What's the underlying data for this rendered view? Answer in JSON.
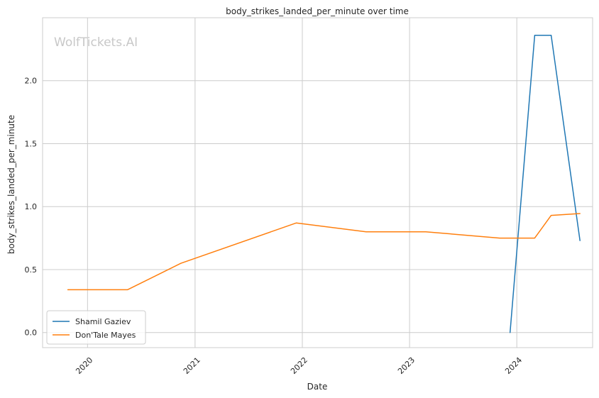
{
  "chart_data": {
    "type": "line",
    "title": "body_strikes_landed_per_minute over time",
    "xlabel": "Date",
    "ylabel": "body_strikes_landed_per_minute",
    "watermark": "WolfTickets.AI",
    "x_ticks": [
      "2020",
      "2021",
      "2022",
      "2023",
      "2024"
    ],
    "y_ticks": [
      "0.0",
      "0.5",
      "1.0",
      "1.5",
      "2.0"
    ],
    "xlim": [
      "2019-08-01",
      "2024-09-15"
    ],
    "ylim": [
      -0.12,
      2.5
    ],
    "grid": true,
    "legend_position": "lower-left",
    "series": [
      {
        "name": "Shamil Gaziev",
        "color": "#1f77b4",
        "points": [
          {
            "x": "2023-12-09",
            "y": 0.0
          },
          {
            "x": "2024-03-02",
            "y": 2.36
          },
          {
            "x": "2024-04-27",
            "y": 2.36
          },
          {
            "x": "2024-08-03",
            "y": 0.73
          }
        ]
      },
      {
        "name": "Don'Tale Mayes",
        "color": "#ff7f0e",
        "points": [
          {
            "x": "2019-10-26",
            "y": 0.34
          },
          {
            "x": "2020-05-16",
            "y": 0.34
          },
          {
            "x": "2020-11-14",
            "y": 0.55
          },
          {
            "x": "2021-12-11",
            "y": 0.87
          },
          {
            "x": "2022-08-06",
            "y": 0.8
          },
          {
            "x": "2023-02-25",
            "y": 0.8
          },
          {
            "x": "2023-11-04",
            "y": 0.75
          },
          {
            "x": "2024-03-02",
            "y": 0.75
          },
          {
            "x": "2024-04-27",
            "y": 0.93
          },
          {
            "x": "2024-08-03",
            "y": 0.945
          }
        ]
      }
    ]
  }
}
